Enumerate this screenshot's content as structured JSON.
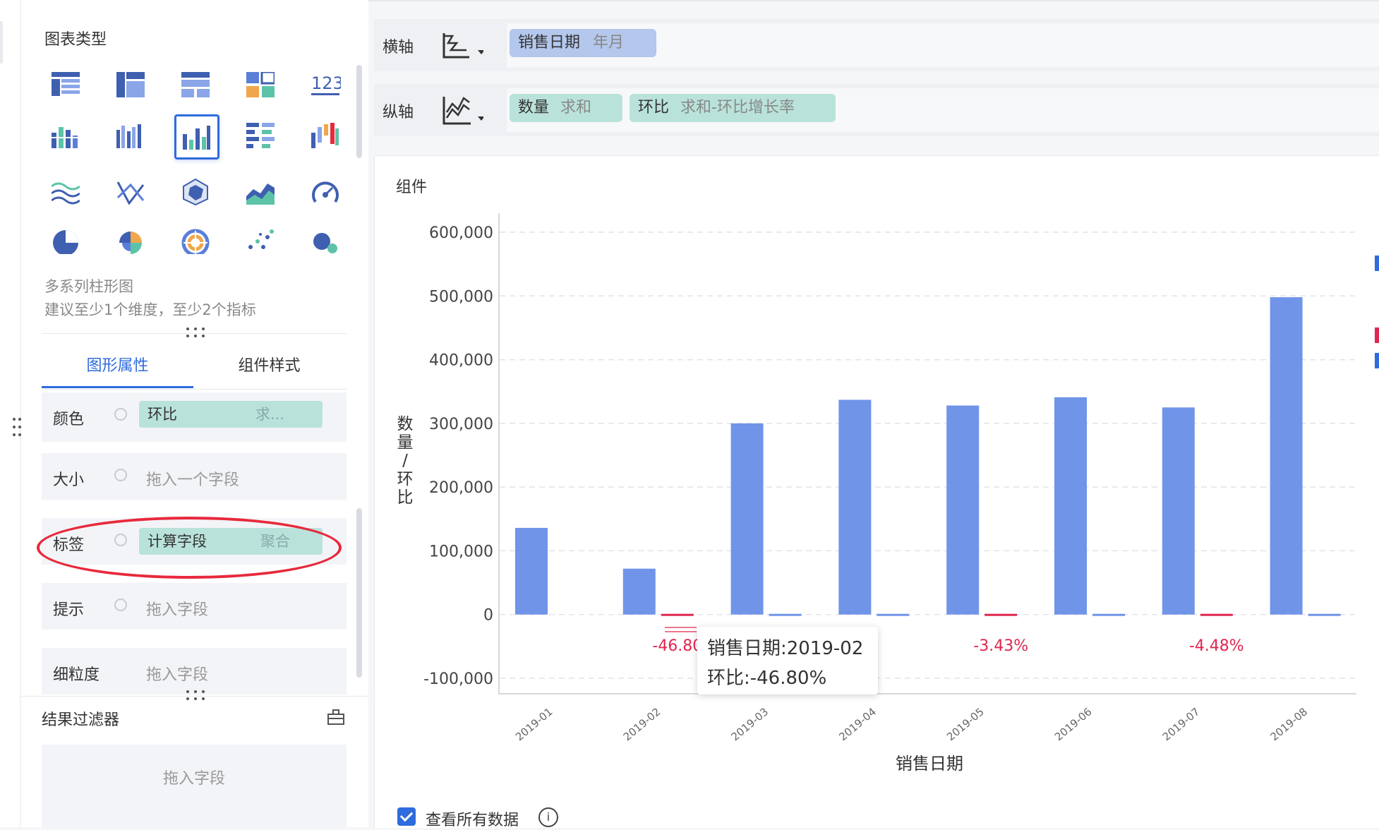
{
  "panel": {
    "chart_type_title": "图表类型",
    "selected_desc": "多系列柱形图",
    "selected_hint": "建议至少1个维度，至少2个指标",
    "tabs": [
      "图形属性",
      "组件样式"
    ],
    "props": {
      "color_label": "颜色",
      "color_field": "环比",
      "color_agg": "求...",
      "size_label": "大小",
      "size_placeholder": "拖入一个字段",
      "label_label": "标签",
      "label_field": "计算字段",
      "label_agg": "聚合",
      "tooltip_label": "提示",
      "tooltip_placeholder": "拖入字段",
      "granularity_label": "细粒度",
      "granularity_placeholder": "拖入字段"
    },
    "filter_title": "结果过滤器",
    "filter_placeholder": "拖入字段",
    "icon_123": "123"
  },
  "axes": {
    "x_label": "横轴",
    "x_field": "销售日期",
    "x_field_sub": "年月",
    "y_label": "纵轴",
    "y_field1": "数量",
    "y_field1_sub": "求和",
    "y_field2": "环比",
    "y_field2_sub": "求和-环比增长率"
  },
  "component_title": "组件",
  "tooltip": {
    "line1": "销售日期:2019-02",
    "line2": "环比:-46.80%"
  },
  "show_all_label": "查看所有数据",
  "colors": {
    "bar": "#7094e8",
    "negative_label": "#e0264e",
    "accent": "#2f6bdc",
    "pill_green": "#b9e3da",
    "pill_blue": "#b4c7ec"
  },
  "chart_data": {
    "type": "bar",
    "categories": [
      "2019-01",
      "2019-02",
      "2019-03",
      "2019-04",
      "2019-05",
      "2019-06",
      "2019-07",
      "2019-08"
    ],
    "series": [
      {
        "name": "数量",
        "values": [
          136000,
          72000,
          300000,
          337000,
          328000,
          341000,
          325000,
          498000
        ]
      },
      {
        "name": "环比",
        "values": [
          null,
          -0.468,
          3.17,
          0.123,
          -0.0343,
          0.04,
          -0.0448,
          0.532
        ]
      }
    ],
    "data_labels": [
      {
        "category": "2019-02",
        "text": "-46.80"
      },
      {
        "category": "2019-05",
        "text": "-3.43%"
      },
      {
        "category": "2019-07",
        "text": "-4.48%"
      }
    ],
    "xlabel": "销售日期",
    "ylabel": "数量/环比",
    "ylim": [
      -100000,
      600000
    ],
    "yticks": [
      600000,
      500000,
      400000,
      300000,
      200000,
      100000,
      0,
      -100000
    ],
    "ytick_labels": [
      "600,000",
      "500,000",
      "400,000",
      "300,000",
      "200,000",
      "100,000",
      "0",
      "-100,000"
    ],
    "grid": true
  }
}
